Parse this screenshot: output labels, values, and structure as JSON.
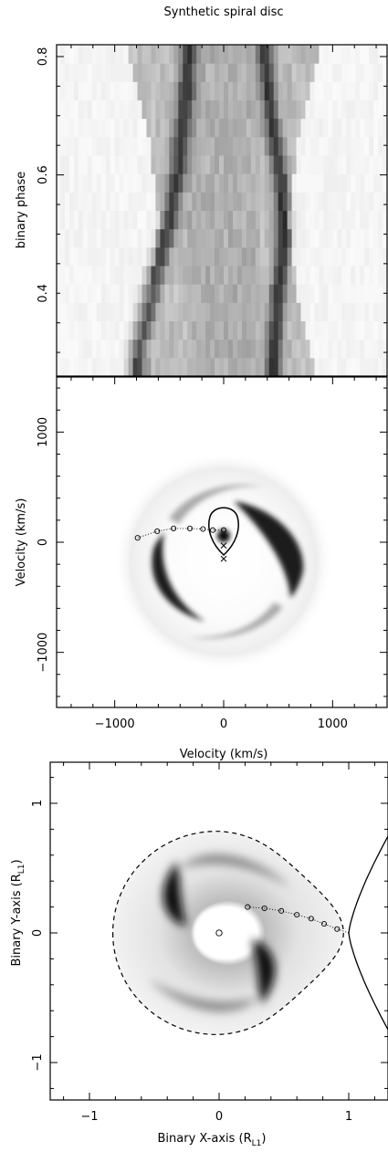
{
  "chart_data": [
    {
      "type": "heatmap",
      "title": "Synthetic spiral disc",
      "xlabel": "",
      "ylabel": "binary phase",
      "ylim": [
        0.26,
        0.82
      ],
      "yticks": [
        0.4,
        0.6,
        0.8
      ],
      "ytick_labels": [
        "0.4",
        "0.6",
        "0.8"
      ],
      "grid": false,
      "note": "trailed spectrum (greyscale); velocity axis shared with panel below",
      "features": [
        {
          "name": "blue S-wave",
          "phase": [
            0.3,
            0.42,
            0.5,
            0.6,
            0.72,
            0.8
          ],
          "velocity": [
            -800,
            -650,
            -520,
            -420,
            -360,
            -320
          ]
        },
        {
          "name": "red S-wave",
          "phase": [
            0.3,
            0.4,
            0.5,
            0.6,
            0.7,
            0.8
          ],
          "velocity": [
            460,
            500,
            560,
            520,
            430,
            380
          ]
        }
      ]
    },
    {
      "type": "heatmap",
      "xlabel": "Velocity (km/s)",
      "ylabel": "Velocity (km/s)",
      "xlim": [
        -1500,
        1500
      ],
      "ylim": [
        -1500,
        1500
      ],
      "xticks": [
        -1000,
        0,
        1000
      ],
      "xtick_labels": [
        "−1000",
        "0",
        "1000"
      ],
      "yticks": [
        -1000,
        0,
        1000
      ],
      "ytick_labels": [
        "−1000",
        "0",
        "1000"
      ],
      "grid": false,
      "markers_circle": [
        [
          -790,
          40
        ],
        [
          -610,
          100
        ],
        [
          -460,
          125
        ],
        [
          -310,
          125
        ],
        [
          -190,
          120
        ],
        [
          -100,
          110
        ],
        [
          0,
          110
        ]
      ],
      "markers_cross": [
        [
          0,
          -30
        ],
        [
          0,
          -150
        ]
      ],
      "roche_lobe_curve": true
    },
    {
      "type": "heatmap",
      "xlabel": "Binary X-axis (R",
      "xlabel_sub": "L1",
      "xlabel_end": ")",
      "ylabel": "Binary Y-axis (R",
      "ylabel_sub": "L1",
      "ylabel_end": ")",
      "xlim": [
        -1.3,
        1.3
      ],
      "ylim": [
        -1.3,
        1.3
      ],
      "xticks": [
        -1,
        0,
        1
      ],
      "xtick_labels": [
        "−1",
        "0",
        "1"
      ],
      "yticks": [
        -1,
        0,
        1
      ],
      "ytick_labels": [
        "−1",
        "0",
        "1"
      ],
      "grid": false,
      "stream_circles": [
        [
          0.22,
          0.2
        ],
        [
          0.35,
          0.19
        ],
        [
          0.48,
          0.17
        ],
        [
          0.6,
          0.14
        ],
        [
          0.71,
          0.11
        ],
        [
          0.81,
          0.07
        ],
        [
          0.91,
          0.03
        ]
      ],
      "primary": [
        0,
        0
      ]
    }
  ]
}
